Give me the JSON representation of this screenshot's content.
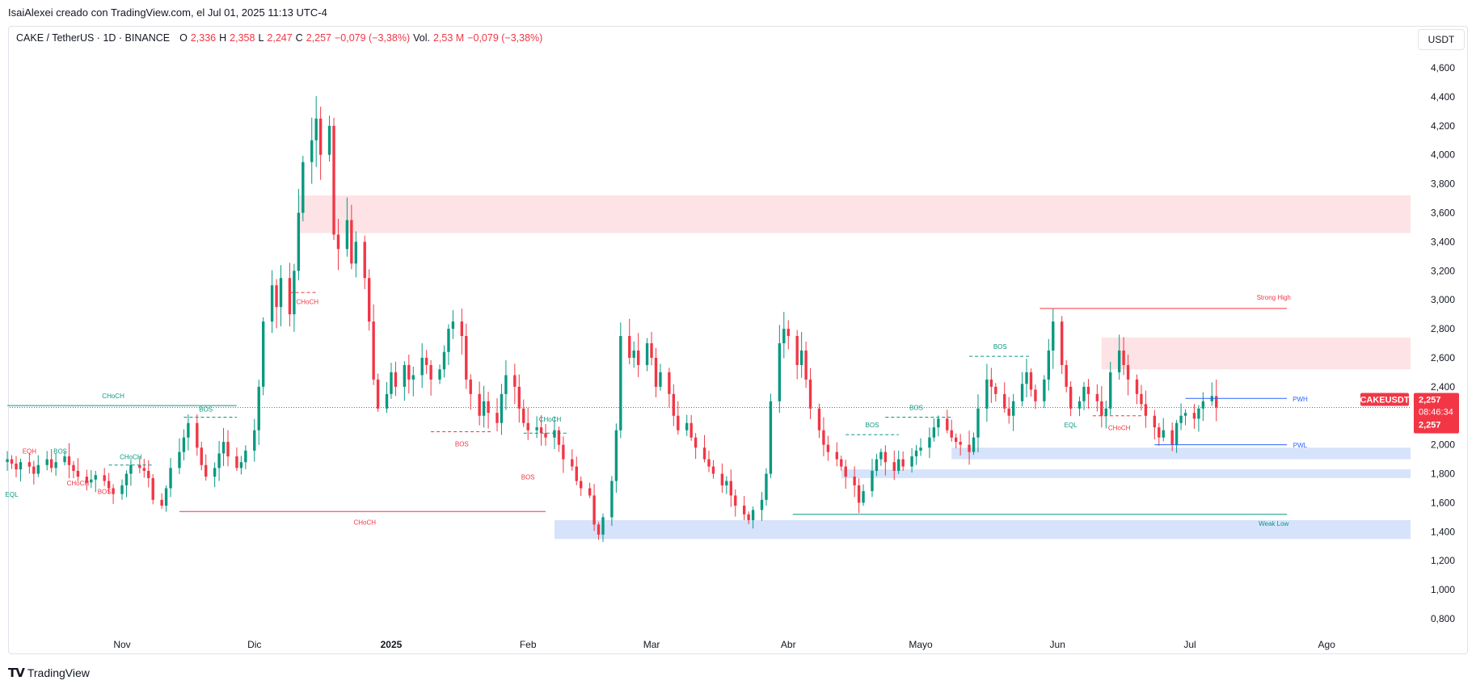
{
  "caption": "IsaiAlexei creado con TradingView.com, el Jul 01, 2025 11:13 UTC-4",
  "legend": {
    "symbol": "CAKE / TetherUS · 1D · BINANCE",
    "o_label": "O",
    "o": "2,336",
    "h_label": "H",
    "h": "2,358",
    "l_label": "L",
    "l": "2,247",
    "c_label": "C",
    "c": "2,257",
    "change": "−0,079 (−3,38%)",
    "vol_label": "Vol.",
    "vol": "2,53 M",
    "vol_change": "−0,079 (−3,38%)"
  },
  "unit": "USDT",
  "brand": "TradingView",
  "colors": {
    "up": "#089981",
    "down": "#f23645",
    "supply": "#fde3e5",
    "demand": "#d6e3fb",
    "pw": "#2962ff"
  },
  "chart_data": {
    "type": "candlestick",
    "ylim": [
      0.7,
      4.75
    ],
    "y_ticks": [
      "4,600",
      "4,400",
      "4,200",
      "4,000",
      "3,800",
      "3,600",
      "3,400",
      "3,200",
      "3,000",
      "2,800",
      "2,600",
      "2,400",
      "2,200",
      "2,000",
      "1,800",
      "1,600",
      "1,400",
      "1,200",
      "1,000",
      "0,800"
    ],
    "y_tick_values": [
      4.6,
      4.4,
      4.2,
      4.0,
      3.8,
      3.6,
      3.4,
      3.2,
      3.0,
      2.8,
      2.6,
      2.4,
      2.2,
      2.0,
      1.8,
      1.6,
      1.4,
      1.2,
      1.0,
      0.8
    ],
    "x_ticks": [
      {
        "label": "Nov",
        "date": "2024-11-01"
      },
      {
        "label": "Dic",
        "date": "2024-12-01"
      },
      {
        "label": "2025",
        "date": "2025-01-01"
      },
      {
        "label": "Feb",
        "date": "2025-02-01"
      },
      {
        "label": "Mar",
        "date": "2025-03-01"
      },
      {
        "label": "Abr",
        "date": "2025-04-01"
      },
      {
        "label": "Mayo",
        "date": "2025-05-01"
      },
      {
        "label": "Jun",
        "date": "2025-06-01"
      },
      {
        "label": "Jul",
        "date": "2025-07-01"
      },
      {
        "label": "Ago",
        "date": "2025-08-01"
      }
    ],
    "x_range": [
      "2024-10-06",
      "2025-08-27"
    ],
    "candle_start": "2024-10-06",
    "closes": [
      1.9,
      1.87,
      1.83,
      1.88,
      1.85,
      1.8,
      1.86,
      1.9,
      1.84,
      1.88,
      1.92,
      1.86,
      1.82,
      1.78,
      1.74,
      1.76,
      1.79,
      1.75,
      1.7,
      1.66,
      1.72,
      1.8,
      1.86,
      1.84,
      1.82,
      1.77,
      1.62,
      1.58,
      1.7,
      1.84,
      1.95,
      2.05,
      2.15,
      1.98,
      1.86,
      1.78,
      1.84,
      1.94,
      2.02,
      1.92,
      1.84,
      1.88,
      1.96,
      2.1,
      2.4,
      2.85,
      3.1,
      2.95,
      3.15,
      2.9,
      3.2,
      3.6,
      3.95,
      4.1,
      4.25,
      4.0,
      4.2,
      3.45,
      3.35,
      3.55,
      3.25,
      3.4,
      3.15,
      2.85,
      2.45,
      2.25,
      2.35,
      2.5,
      2.4,
      2.55,
      2.45,
      2.48,
      2.6,
      2.55,
      2.45,
      2.52,
      2.64,
      2.8,
      2.85,
      2.75,
      2.45,
      2.35,
      2.2,
      2.3,
      2.22,
      2.15,
      2.35,
      2.48,
      2.4,
      2.25,
      2.15,
      2.1,
      2.12,
      2.08,
      2.05,
      2.1,
      2.0,
      1.9,
      1.85,
      1.75,
      1.7,
      1.65,
      1.45,
      1.38,
      1.5,
      1.75,
      2.1,
      2.75,
      2.6,
      2.65,
      2.55,
      2.7,
      2.6,
      2.4,
      2.5,
      2.35,
      2.2,
      2.1,
      2.15,
      2.05,
      1.98,
      1.9,
      1.85,
      1.8,
      1.72,
      1.75,
      1.65,
      1.58,
      1.52,
      1.48,
      1.55,
      1.62,
      1.8,
      2.3,
      2.7,
      2.8,
      2.75,
      2.55,
      2.65,
      2.45,
      2.25,
      2.1,
      2.0,
      1.95,
      1.9,
      1.85,
      1.78,
      1.72,
      1.6,
      1.68,
      1.82,
      1.9,
      1.95,
      1.88,
      1.82,
      1.9,
      1.85,
      1.92,
      1.96,
      1.98,
      2.05,
      2.12,
      2.18,
      2.1,
      2.05,
      2.02,
      2.0,
      1.95,
      2.05,
      2.25,
      2.45,
      2.4,
      2.35,
      2.25,
      2.2,
      2.3,
      2.42,
      2.5,
      2.38,
      2.3,
      2.45,
      2.65,
      2.85,
      2.55,
      2.4,
      2.25,
      2.3,
      2.4,
      2.35,
      2.3,
      2.2,
      2.25,
      2.5,
      2.65,
      2.55,
      2.45,
      2.35,
      2.28,
      2.2,
      2.12,
      2.05,
      2.1,
      2.0,
      2.15,
      2.2,
      2.22,
      2.18,
      2.25,
      2.3,
      2.336,
      2.257
    ]
  },
  "annotations": {
    "choch": "CHoCH",
    "bos": "BOS",
    "eqh": "EQH",
    "eql": "EQL",
    "strong_high": "Strong High",
    "weak_low": "Weak Low",
    "pwh": "PWH",
    "pwl": "PWL"
  },
  "price_tag": {
    "symbol": "CAKEUSDT",
    "price": "2,257",
    "countdown": "08:46:34",
    "price2": "2,257"
  }
}
